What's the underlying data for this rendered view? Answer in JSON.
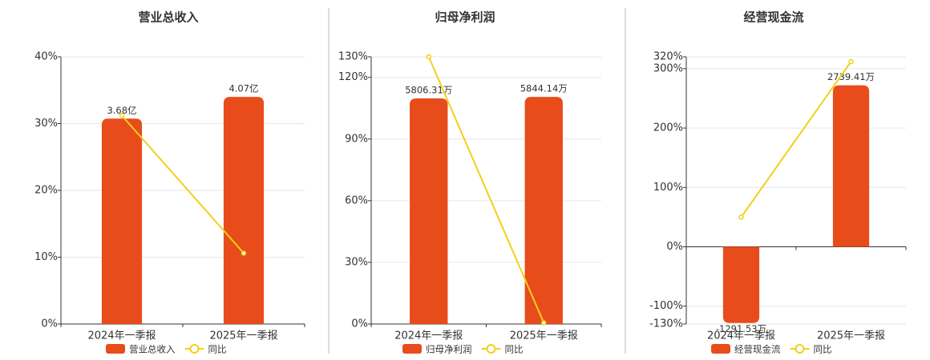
{
  "chart_data": [
    {
      "type": "bar",
      "title": "营业总收入",
      "categories": [
        "2024年一季报",
        "2025年一季报"
      ],
      "series": [
        {
          "name": "营业总收入",
          "color": "#e84c1b",
          "values": [
            3.68,
            4.07
          ],
          "value_labels": [
            "3.68亿",
            "4.07亿"
          ]
        },
        {
          "name": "同比",
          "type": "line",
          "color": "#f2d01a",
          "values": [
            31.2,
            10.6
          ]
        }
      ],
      "ylim": [
        0,
        40
      ],
      "yticks": [
        {
          "value": 0,
          "label": "0%"
        },
        {
          "value": 10,
          "label": "10%"
        },
        {
          "value": 20,
          "label": "20%"
        },
        {
          "value": 30,
          "label": "30%"
        },
        {
          "value": 40,
          "label": "40%"
        }
      ],
      "grid": true
    },
    {
      "type": "bar",
      "title": "归母净利润",
      "categories": [
        "2024年一季报",
        "2025年一季报"
      ],
      "series": [
        {
          "name": "归母净利润",
          "color": "#e84c1b",
          "values": [
            5806.31,
            5844.14
          ],
          "value_labels": [
            "5806.31万",
            "5844.14万"
          ]
        },
        {
          "name": "同比",
          "type": "line",
          "color": "#f2d01a",
          "values": [
            130,
            0.6
          ]
        }
      ],
      "ylim": [
        0,
        130
      ],
      "yticks": [
        {
          "value": 0,
          "label": "0%"
        },
        {
          "value": 30,
          "label": "30%"
        },
        {
          "value": 60,
          "label": "60%"
        },
        {
          "value": 90,
          "label": "90%"
        },
        {
          "value": 120,
          "label": "120%"
        },
        {
          "value": 130,
          "label": "130%"
        }
      ],
      "grid": true
    },
    {
      "type": "bar",
      "title": "经营现金流",
      "categories": [
        "2024年一季报",
        "2025年一季报"
      ],
      "series": [
        {
          "name": "经营现金流",
          "color": "#e84c1b",
          "values": [
            -1291.53,
            2739.41
          ],
          "value_labels": [
            "-1291.53万",
            "2739.41万"
          ]
        },
        {
          "name": "同比",
          "type": "line",
          "color": "#f2d01a",
          "values": [
            50,
            312
          ]
        }
      ],
      "ylim": [
        -130,
        320
      ],
      "yticks": [
        {
          "value": -130,
          "label": "-130%"
        },
        {
          "value": -100,
          "label": "-100%"
        },
        {
          "value": 0,
          "label": "0%"
        },
        {
          "value": 100,
          "label": "100%"
        },
        {
          "value": 200,
          "label": "200%"
        },
        {
          "value": 300,
          "label": "300%"
        },
        {
          "value": 320,
          "label": "320%"
        }
      ],
      "grid": true
    }
  ]
}
